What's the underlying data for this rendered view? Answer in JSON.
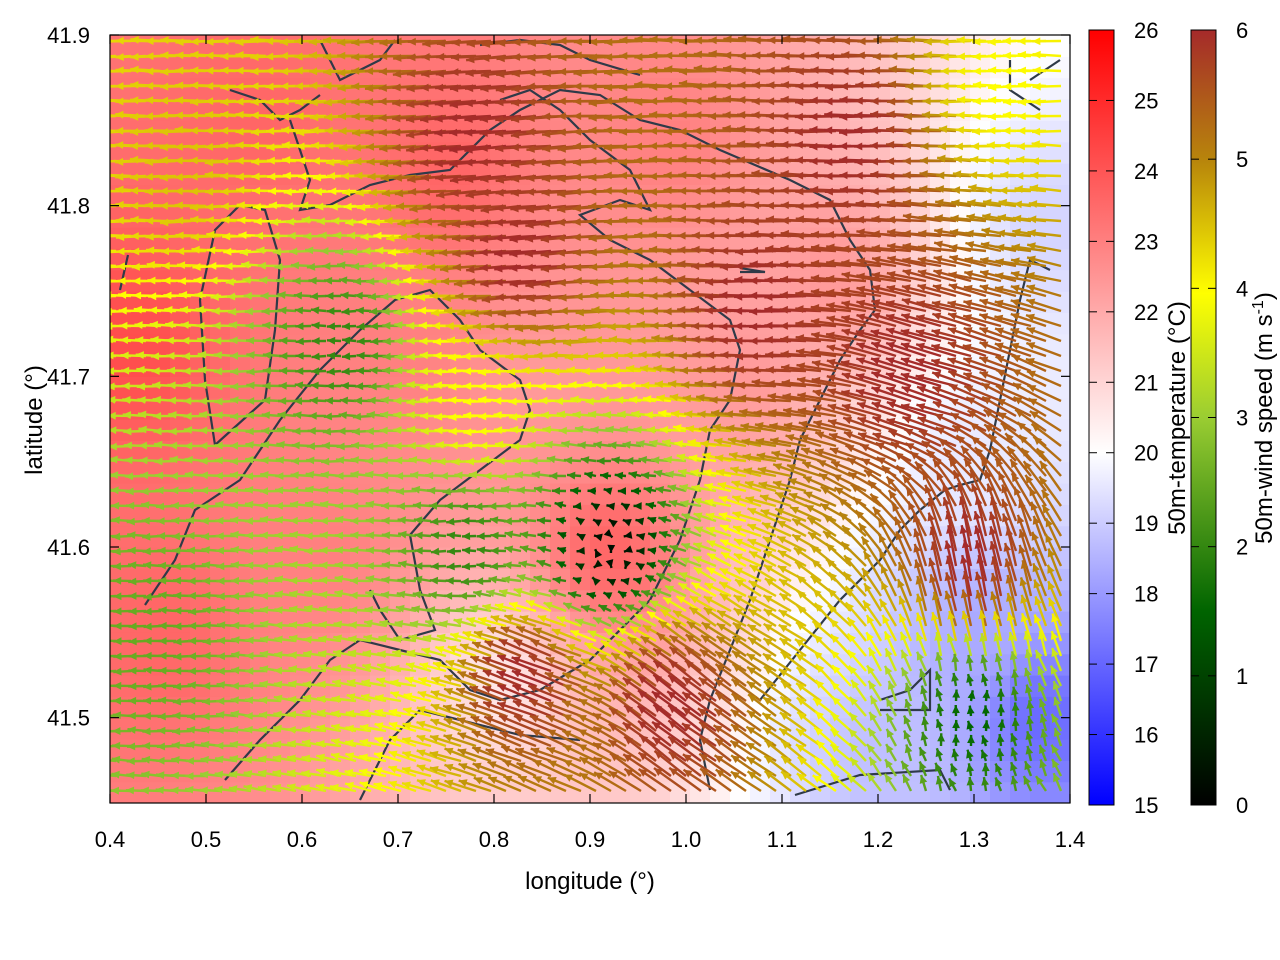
{
  "chart_data": {
    "type": "heatmap",
    "title": "",
    "xlabel": "longitude (°)",
    "ylabel": "latitude (°)",
    "xlim": [
      0.4,
      1.4
    ],
    "ylim": [
      41.45,
      41.9
    ],
    "xticks": [
      "0.4",
      "0.5",
      "0.6",
      "0.7",
      "0.8",
      "0.9",
      "1.0",
      "1.1",
      "1.2",
      "1.3",
      "1.4"
    ],
    "yticks": [
      "41.5",
      "41.6",
      "41.7",
      "41.8",
      "41.9"
    ],
    "ytick_values": [
      41.5,
      41.6,
      41.7,
      41.8,
      41.9
    ],
    "grid": false,
    "temperature_colorbar": {
      "label": "50m-temperature (°C)",
      "range": [
        15,
        26
      ],
      "ticks": [
        "15",
        "16",
        "17",
        "18",
        "19",
        "20",
        "21",
        "22",
        "23",
        "24",
        "25",
        "26"
      ],
      "colors": [
        "#0000ff",
        "#ffffff",
        "#ff0000"
      ]
    },
    "wind_colorbar": {
      "label_main": "50m-wind speed (m s",
      "label_sup": "-1",
      "label_end": ")",
      "range": [
        0,
        6
      ],
      "ticks": [
        "0",
        "1",
        "2",
        "3",
        "4",
        "5",
        "6"
      ],
      "colors": [
        "#000000",
        "#006400",
        "#9acd32",
        "#ffff00",
        "#d2a000",
        "#b8860b",
        "#a52a2a"
      ]
    },
    "temperature_field": {
      "description_points": [
        {
          "lon": 0.42,
          "lat": 41.72,
          "temp": 24.5
        },
        {
          "lon": 0.45,
          "lat": 41.55,
          "temp": 24.0
        },
        {
          "lon": 0.55,
          "lat": 41.85,
          "temp": 24.0
        },
        {
          "lon": 0.62,
          "lat": 41.6,
          "temp": 23.5
        },
        {
          "lon": 0.75,
          "lat": 41.82,
          "temp": 24.0
        },
        {
          "lon": 0.8,
          "lat": 41.52,
          "temp": 21.5
        },
        {
          "lon": 0.92,
          "lat": 41.6,
          "temp": 24.0
        },
        {
          "lon": 0.98,
          "lat": 41.84,
          "temp": 23.5
        },
        {
          "lon": 1.05,
          "lat": 41.7,
          "temp": 23.0
        },
        {
          "lon": 1.15,
          "lat": 41.76,
          "temp": 23.0
        },
        {
          "lon": 1.2,
          "lat": 41.48,
          "temp": 19.5
        },
        {
          "lon": 1.3,
          "lat": 41.55,
          "temp": 19.0
        },
        {
          "lon": 1.37,
          "lat": 41.5,
          "temp": 17.5
        },
        {
          "lon": 1.38,
          "lat": 41.79,
          "temp": 20.0
        },
        {
          "lon": 1.3,
          "lat": 41.65,
          "temp": 20.5
        },
        {
          "lon": 0.7,
          "lat": 41.72,
          "temp": 23.5
        },
        {
          "lon": 0.85,
          "lat": 41.7,
          "temp": 23.0
        }
      ]
    },
    "wind_regions": [
      {
        "lon": 0.45,
        "lat": 41.55,
        "u": -3,
        "v": 0,
        "speed": 2.5
      },
      {
        "lon": 0.5,
        "lat": 41.82,
        "u": -4,
        "v": 0,
        "speed": 4.5
      },
      {
        "lon": 0.65,
        "lat": 41.72,
        "u": -2.5,
        "v": 0,
        "speed": 2.0
      },
      {
        "lon": 0.8,
        "lat": 41.84,
        "u": -6,
        "v": -0.5,
        "speed": 6.0
      },
      {
        "lon": 0.85,
        "lat": 41.77,
        "u": -6,
        "v": -0.5,
        "speed": 6.0
      },
      {
        "lon": 0.8,
        "lat": 41.68,
        "u": -4,
        "v": 0,
        "speed": 4.0
      },
      {
        "lon": 0.78,
        "lat": 41.6,
        "u": -2,
        "v": 0,
        "speed": 2.0
      },
      {
        "lon": 0.92,
        "lat": 41.6,
        "u": 0,
        "v": 0,
        "speed": 0.2
      },
      {
        "lon": 0.85,
        "lat": 41.52,
        "u": -5,
        "v": 2,
        "speed": 6.0
      },
      {
        "lon": 1.0,
        "lat": 41.5,
        "u": -4,
        "v": 3,
        "speed": 6.0
      },
      {
        "lon": 1.1,
        "lat": 41.74,
        "u": -6,
        "v": 0,
        "speed": 6.0
      },
      {
        "lon": 1.25,
        "lat": 41.7,
        "u": -5,
        "v": 1.5,
        "speed": 6.0
      },
      {
        "lon": 1.3,
        "lat": 41.58,
        "u": -1,
        "v": 5,
        "speed": 6.0
      },
      {
        "lon": 1.3,
        "lat": 41.5,
        "u": 0,
        "v": 1,
        "speed": 1.5
      },
      {
        "lon": 1.35,
        "lat": 41.87,
        "u": -4,
        "v": 0,
        "speed": 4.0
      },
      {
        "lon": 1.2,
        "lat": 41.84,
        "u": -6,
        "v": 0,
        "speed": 6.0
      }
    ]
  }
}
